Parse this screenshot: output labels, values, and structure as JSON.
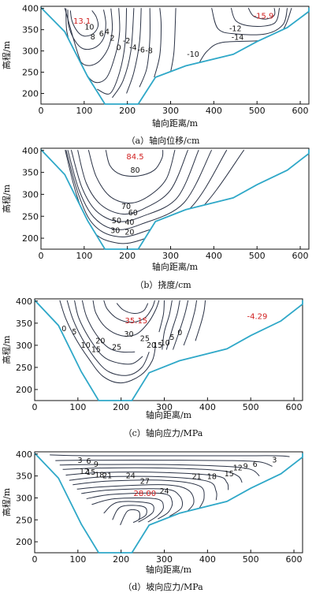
{
  "chart_data": [
    {
      "type": "contour",
      "caption": "（a）轴向位移/cm",
      "xlabel": "轴向距离/m",
      "ylabel": "高程/m",
      "xlim": [
        0,
        620
      ],
      "ylim": [
        175,
        405
      ],
      "xticks": [
        0,
        100,
        200,
        300,
        400,
        500,
        600
      ],
      "yticks": [
        200,
        250,
        300,
        350,
        400
      ],
      "contour_labels": [
        "10",
        "8",
        "6",
        "4",
        "2",
        "0",
        "-2",
        "-4",
        "-6",
        "-8",
        "-10",
        "-12",
        "-14"
      ],
      "peaks": [
        {
          "value": "13.1",
          "x": 95,
          "y": 370
        },
        {
          "value": "-15.9",
          "x": 515,
          "y": 382
        }
      ]
    },
    {
      "type": "contour",
      "caption": "（b）挠度/cm",
      "xlabel": "轴向距离/m",
      "ylabel": "高程/m",
      "xlim": [
        0,
        620
      ],
      "ylim": [
        175,
        405
      ],
      "xticks": [
        0,
        100,
        200,
        300,
        400,
        500,
        600
      ],
      "yticks": [
        200,
        250,
        300,
        350,
        400
      ],
      "contour_labels": [
        "80",
        "70",
        "60",
        "50",
        "40",
        "30",
        "20"
      ],
      "peaks": [
        {
          "value": "84.5",
          "x": 218,
          "y": 385
        }
      ]
    },
    {
      "type": "contour",
      "caption": "（c）轴向应力/MPa",
      "xlabel": "轴向距离/m",
      "ylabel": "高程/m",
      "xlim": [
        0,
        620
      ],
      "ylim": [
        175,
        405
      ],
      "xticks": [
        0,
        100,
        200,
        300,
        400,
        500,
        600
      ],
      "yticks": [
        200,
        250,
        300,
        350,
        400
      ],
      "contour_labels": [
        "0",
        "5",
        "10",
        "15",
        "20",
        "25",
        "30",
        "25",
        "20",
        "15",
        "10",
        "5",
        "0"
      ],
      "peaks": [
        {
          "value": "35.15",
          "x": 235,
          "y": 355
        },
        {
          "value": "-4.29",
          "x": 515,
          "y": 365
        }
      ]
    },
    {
      "type": "contour",
      "caption": "（d）坡向应力/MPa",
      "xlabel": "轴向距离/m",
      "ylabel": "高程/m",
      "xlim": [
        0,
        620
      ],
      "ylim": [
        175,
        405
      ],
      "xticks": [
        0,
        100,
        200,
        300,
        400,
        500,
        600
      ],
      "yticks": [
        200,
        250,
        300,
        350,
        400
      ],
      "contour_labels": [
        "3",
        "6",
        "9",
        "12",
        "15",
        "18",
        "21",
        "24",
        "27",
        "24",
        "21",
        "18",
        "15",
        "12",
        "9",
        "6",
        "3"
      ],
      "peaks": [
        {
          "value": "28.00",
          "x": 255,
          "y": 310
        }
      ]
    }
  ]
}
